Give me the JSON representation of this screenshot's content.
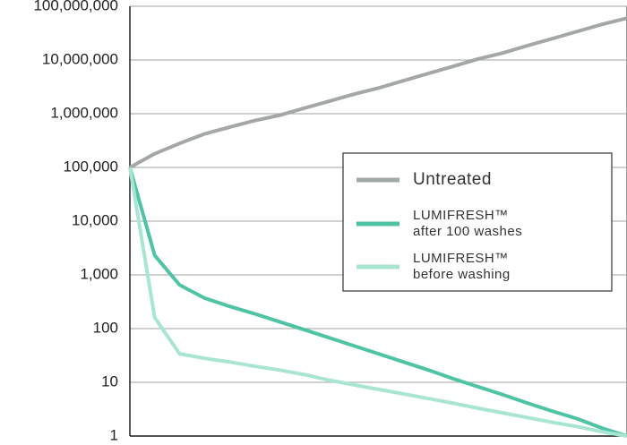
{
  "chart_data": {
    "type": "line",
    "log_y": true,
    "grid": true,
    "legend": "right",
    "categories": [
      null,
      null,
      null,
      null,
      null,
      null,
      null,
      null,
      null,
      null,
      null,
      null,
      null,
      null,
      null,
      null,
      null,
      null,
      null,
      null,
      null
    ],
    "ylim": [
      1,
      100000000
    ],
    "yticks": [
      1,
      10,
      100,
      {
        "value": 1000,
        "label": "1,000"
      },
      {
        "value": 10000,
        "label": "10,000"
      },
      {
        "value": 100000,
        "label": "100,000"
      },
      {
        "value": 1000000,
        "label": "1,000,000"
      },
      {
        "value": 10000000,
        "label": "10,000,000"
      },
      {
        "value": 100000000,
        "label": "100,000,000"
      }
    ],
    "series": [
      {
        "name": "Untreated",
        "color": "#a3a8a6",
        "values": [
          100000,
          180000,
          280000,
          420000,
          560000,
          740000,
          930000,
          1260000,
          1700000,
          2300000,
          3000000,
          4100000,
          5600000,
          7600000,
          10400000,
          13500000,
          18500000,
          25000000,
          34000000,
          46000000,
          60000000
        ]
      },
      {
        "name": "LUMIFRESH™ after 100 washes",
        "color": "#4fc4a5",
        "values": [
          100000,
          2300,
          650,
          370,
          260,
          190,
          135,
          96,
          68,
          48,
          34,
          24,
          17,
          11.7,
          8.3,
          5.9,
          4.1,
          2.9,
          2.1,
          1.4,
          1
        ]
      },
      {
        "name": "LUMIFRESH™ before washing",
        "color": "#a8e6d2",
        "values": [
          100000,
          160,
          34,
          28,
          24,
          20,
          17,
          14,
          11,
          9,
          7.4,
          6.1,
          5,
          4.1,
          3.3,
          2.7,
          2.2,
          1.8,
          1.5,
          1.2,
          1
        ]
      }
    ]
  }
}
